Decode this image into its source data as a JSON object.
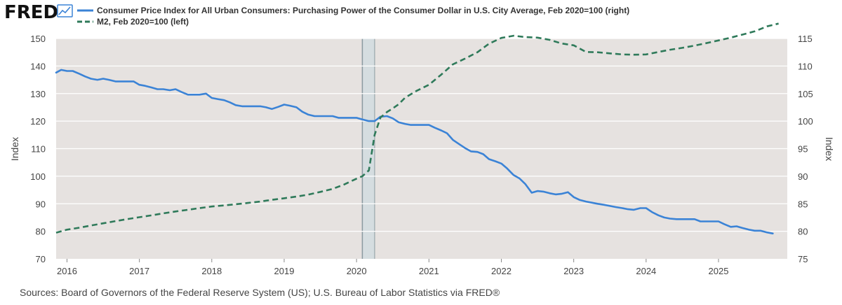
{
  "logo": {
    "text": "FRED"
  },
  "colors": {
    "cpi": "#3b83d6",
    "m2": "#2f7a5a",
    "plot_bg": "#e6e2e0",
    "grid": "#ffffff",
    "recession": "#d5dde0",
    "recession_edge": "#8a9aa0"
  },
  "source": "Sources: Board of Governors of the Federal Reserve System (US); U.S. Bureau of Labor Statistics via FRED®",
  "chart_data": {
    "type": "line",
    "title": "",
    "xlabel": "",
    "ylabel_left": "Index",
    "ylabel_right": "Index",
    "xlim": [
      2015.85,
      2025.95
    ],
    "ylim_left": [
      70,
      150
    ],
    "ylim_right": [
      75,
      115
    ],
    "x_ticks": [
      2016,
      2017,
      2018,
      2019,
      2020,
      2021,
      2022,
      2023,
      2024,
      2025
    ],
    "x_tick_labels": [
      "2016",
      "2017",
      "2018",
      "2019",
      "2020",
      "2021",
      "2022",
      "2023",
      "2024",
      "2025"
    ],
    "y_ticks_left": [
      70,
      80,
      90,
      100,
      110,
      120,
      130,
      140,
      150
    ],
    "y_tick_labels_left": [
      "70",
      "80",
      "90",
      "100",
      "110",
      "120",
      "130",
      "140",
      "150"
    ],
    "y_ticks_right": [
      75,
      80,
      85,
      90,
      95,
      100,
      105,
      110,
      115
    ],
    "y_tick_labels_right": [
      "75",
      "80",
      "85",
      "90",
      "95",
      "100",
      "105",
      "110",
      "115"
    ],
    "recession": {
      "start": 2020.08,
      "end": 2020.25
    },
    "series": [
      {
        "name": "Consumer Price Index for All Urban Consumers: Purchasing Power of the Consumer Dollar in U.S. City Average, Feb 2020=100 (right)",
        "axis": "right",
        "style": "solid",
        "x": [
          2015.85,
          2015.92,
          2016.0,
          2016.08,
          2016.17,
          2016.25,
          2016.33,
          2016.42,
          2016.5,
          2016.58,
          2016.67,
          2016.75,
          2016.83,
          2016.92,
          2017.0,
          2017.08,
          2017.17,
          2017.25,
          2017.33,
          2017.42,
          2017.5,
          2017.58,
          2017.67,
          2017.75,
          2017.83,
          2017.92,
          2018.0,
          2018.08,
          2018.17,
          2018.25,
          2018.33,
          2018.42,
          2018.5,
          2018.58,
          2018.67,
          2018.75,
          2018.83,
          2018.92,
          2019.0,
          2019.08,
          2019.17,
          2019.25,
          2019.33,
          2019.42,
          2019.5,
          2019.58,
          2019.67,
          2019.75,
          2019.83,
          2019.92,
          2020.0,
          2020.08,
          2020.17,
          2020.25,
          2020.33,
          2020.42,
          2020.5,
          2020.58,
          2020.67,
          2020.75,
          2020.83,
          2020.92,
          2021.0,
          2021.08,
          2021.17,
          2021.25,
          2021.33,
          2021.42,
          2021.5,
          2021.58,
          2021.67,
          2021.75,
          2021.83,
          2021.92,
          2022.0,
          2022.08,
          2022.17,
          2022.25,
          2022.33,
          2022.42,
          2022.5,
          2022.58,
          2022.67,
          2022.75,
          2022.83,
          2022.92,
          2023.0,
          2023.08,
          2023.17,
          2023.25,
          2023.33,
          2023.42,
          2023.5,
          2023.58,
          2023.67,
          2023.75,
          2023.83,
          2023.92,
          2024.0,
          2024.08,
          2024.17,
          2024.25,
          2024.33,
          2024.42,
          2024.5,
          2024.58,
          2024.67,
          2024.75,
          2024.83,
          2024.92,
          2025.0,
          2025.08,
          2025.17,
          2025.25,
          2025.33,
          2025.42,
          2025.5,
          2025.58,
          2025.67,
          2025.75
        ],
        "values": [
          108.8,
          109.3,
          109.1,
          109.1,
          108.6,
          108.1,
          107.7,
          107.5,
          107.7,
          107.5,
          107.2,
          107.2,
          107.2,
          107.2,
          106.6,
          106.4,
          106.1,
          105.8,
          105.8,
          105.6,
          105.8,
          105.3,
          104.8,
          104.8,
          104.8,
          105.0,
          104.2,
          104.0,
          103.8,
          103.4,
          102.9,
          102.7,
          102.7,
          102.7,
          102.7,
          102.5,
          102.2,
          102.6,
          103.0,
          102.8,
          102.5,
          101.7,
          101.2,
          100.9,
          100.9,
          100.9,
          100.9,
          100.6,
          100.6,
          100.6,
          100.6,
          100.3,
          100.0,
          100.0,
          100.8,
          100.9,
          100.5,
          99.8,
          99.5,
          99.3,
          99.3,
          99.3,
          99.3,
          98.8,
          98.3,
          97.8,
          96.6,
          95.8,
          95.1,
          94.5,
          94.4,
          94.0,
          93.1,
          92.7,
          92.3,
          91.4,
          90.2,
          89.6,
          88.6,
          87.0,
          87.3,
          87.2,
          86.9,
          86.7,
          86.8,
          87.1,
          86.2,
          85.7,
          85.4,
          85.2,
          85.0,
          84.8,
          84.6,
          84.4,
          84.2,
          84.0,
          83.9,
          84.2,
          84.2,
          83.5,
          82.9,
          82.5,
          82.3,
          82.2,
          82.2,
          82.2,
          82.2,
          81.8,
          81.8,
          81.8,
          81.8,
          81.3,
          80.8,
          80.9,
          80.6,
          80.3,
          80.1,
          80.1,
          79.8,
          79.6
        ]
      },
      {
        "name": "M2, Feb 2020=100 (left)",
        "axis": "left",
        "style": "dashed",
        "x": [
          2015.85,
          2015.92,
          2016.0,
          2016.17,
          2016.33,
          2016.5,
          2016.67,
          2016.83,
          2017.0,
          2017.17,
          2017.33,
          2017.5,
          2017.67,
          2017.83,
          2018.0,
          2018.17,
          2018.33,
          2018.5,
          2018.67,
          2018.83,
          2019.0,
          2019.17,
          2019.33,
          2019.5,
          2019.67,
          2019.83,
          2020.0,
          2020.08,
          2020.17,
          2020.25,
          2020.33,
          2020.42,
          2020.5,
          2020.58,
          2020.67,
          2020.83,
          2021.0,
          2021.17,
          2021.33,
          2021.5,
          2021.67,
          2021.83,
          2022.0,
          2022.17,
          2022.33,
          2022.5,
          2022.67,
          2022.83,
          2023.0,
          2023.17,
          2023.33,
          2023.5,
          2023.67,
          2023.83,
          2024.0,
          2024.17,
          2024.33,
          2024.5,
          2024.67,
          2024.83,
          2025.0,
          2025.17,
          2025.33,
          2025.5,
          2025.67,
          2025.83
        ],
        "values": [
          79.5,
          80.0,
          80.6,
          81.3,
          82.1,
          82.9,
          83.7,
          84.4,
          85.1,
          85.8,
          86.5,
          87.2,
          87.8,
          88.4,
          89.0,
          89.4,
          89.8,
          90.3,
          90.8,
          91.4,
          92.0,
          92.6,
          93.3,
          94.3,
          95.4,
          97.0,
          99.1,
          100.0,
          102.1,
          115.0,
          121.3,
          123.3,
          124.6,
          126.1,
          128.5,
          131.0,
          133.2,
          136.9,
          140.6,
          142.7,
          145.0,
          148.1,
          150.2,
          151.0,
          150.5,
          150.3,
          149.5,
          148.2,
          147.5,
          145.1,
          145.0,
          144.6,
          144.2,
          144.1,
          144.2,
          145.1,
          145.9,
          146.6,
          147.4,
          148.3,
          149.3,
          150.3,
          151.4,
          152.6,
          154.4,
          155.4
        ]
      }
    ],
    "legend": "top-left"
  }
}
